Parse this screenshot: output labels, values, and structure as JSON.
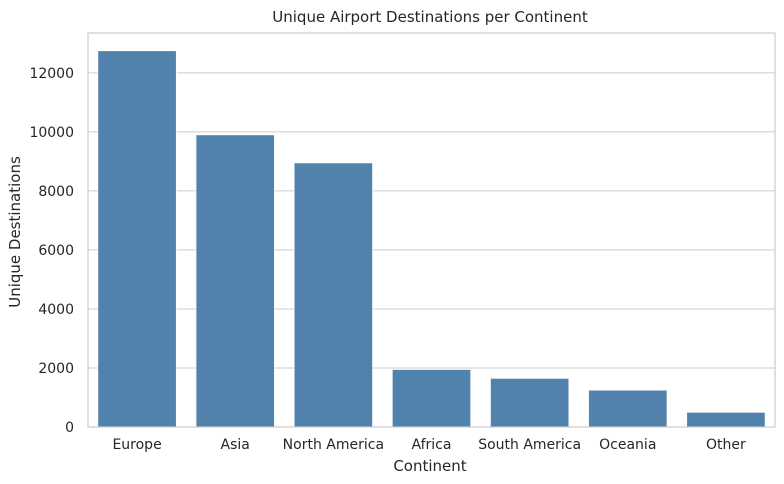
{
  "chart_data": {
    "type": "bar",
    "title": "Unique Airport Destinations per Continent",
    "xlabel": "Continent",
    "ylabel": "Unique Destinations",
    "categories": [
      "Europe",
      "Asia",
      "North America",
      "Africa",
      "South America",
      "Oceania",
      "Other"
    ],
    "values": [
      12750,
      9900,
      8950,
      1950,
      1650,
      1250,
      500
    ],
    "ylim": [
      0,
      13350
    ],
    "yticks": [
      0,
      2000,
      4000,
      6000,
      8000,
      10000,
      12000
    ],
    "grid": "horizontal",
    "bar_color": "#5182ab",
    "grid_color": "#cccccc",
    "frame_color": "#cccccc"
  }
}
